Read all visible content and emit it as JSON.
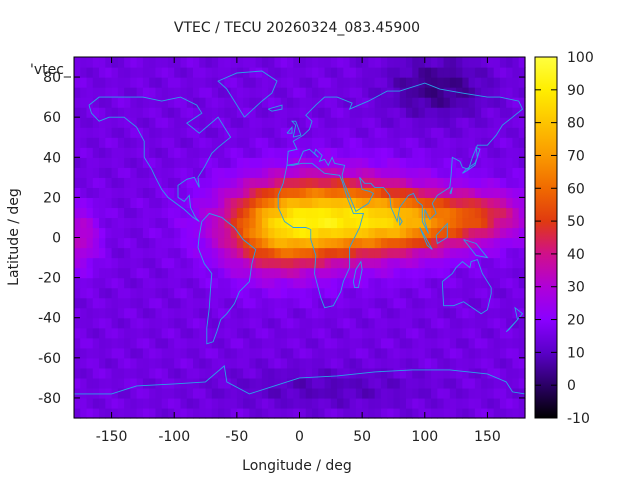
{
  "chart_data": {
    "type": "heatmap",
    "title": "VTEC / TECU 20260324_083.45900",
    "xlabel": "Longitude / deg",
    "ylabel": "Latitude / deg",
    "legend_label": "'vtec_",
    "xlim": [
      -180,
      180
    ],
    "ylim": [
      -90,
      90
    ],
    "x_ticks": [
      -150,
      -100,
      -50,
      0,
      50,
      100,
      150
    ],
    "y_ticks": [
      -80,
      -60,
      -40,
      -20,
      0,
      20,
      40,
      60,
      80
    ],
    "colorbar": {
      "range": [
        -10,
        100
      ],
      "ticks": [
        -10,
        0,
        10,
        20,
        30,
        40,
        50,
        60,
        70,
        80,
        90,
        100
      ],
      "palette": [
        "#000000",
        "#2b0066",
        "#5a00c8",
        "#8a00ff",
        "#b000d8",
        "#d0108a",
        "#e03a10",
        "#f06a00",
        "#fa9a00",
        "#fdc400",
        "#ffee00",
        "#ffff40"
      ]
    },
    "grid": false,
    "map_overlay": "world coastlines",
    "field": {
      "background_tec": 15,
      "peaks": [
        {
          "lon": 25,
          "lat": 10,
          "lon_width": 70,
          "lat_width": 20,
          "amplitude": 62
        },
        {
          "lon": -20,
          "lat": 2,
          "lon_width": 40,
          "lat_width": 20,
          "amplitude": 30
        },
        {
          "lon": 95,
          "lat": 8,
          "lon_width": 55,
          "lat_width": 14,
          "amplitude": 35
        },
        {
          "lon": 150,
          "lat": 12,
          "lon_width": 35,
          "lat_width": 12,
          "amplitude": 20
        },
        {
          "lon": -175,
          "lat": 0,
          "lon_width": 15,
          "lat_width": 15,
          "amplitude": 18
        }
      ],
      "lows": [
        {
          "lon": 110,
          "lat": 75,
          "lon_width": 40,
          "lat_width": 15,
          "amplitude": -12
        },
        {
          "lon": 20,
          "lat": -75,
          "lon_width": 80,
          "lat_width": 10,
          "amplitude": -6
        }
      ]
    }
  }
}
